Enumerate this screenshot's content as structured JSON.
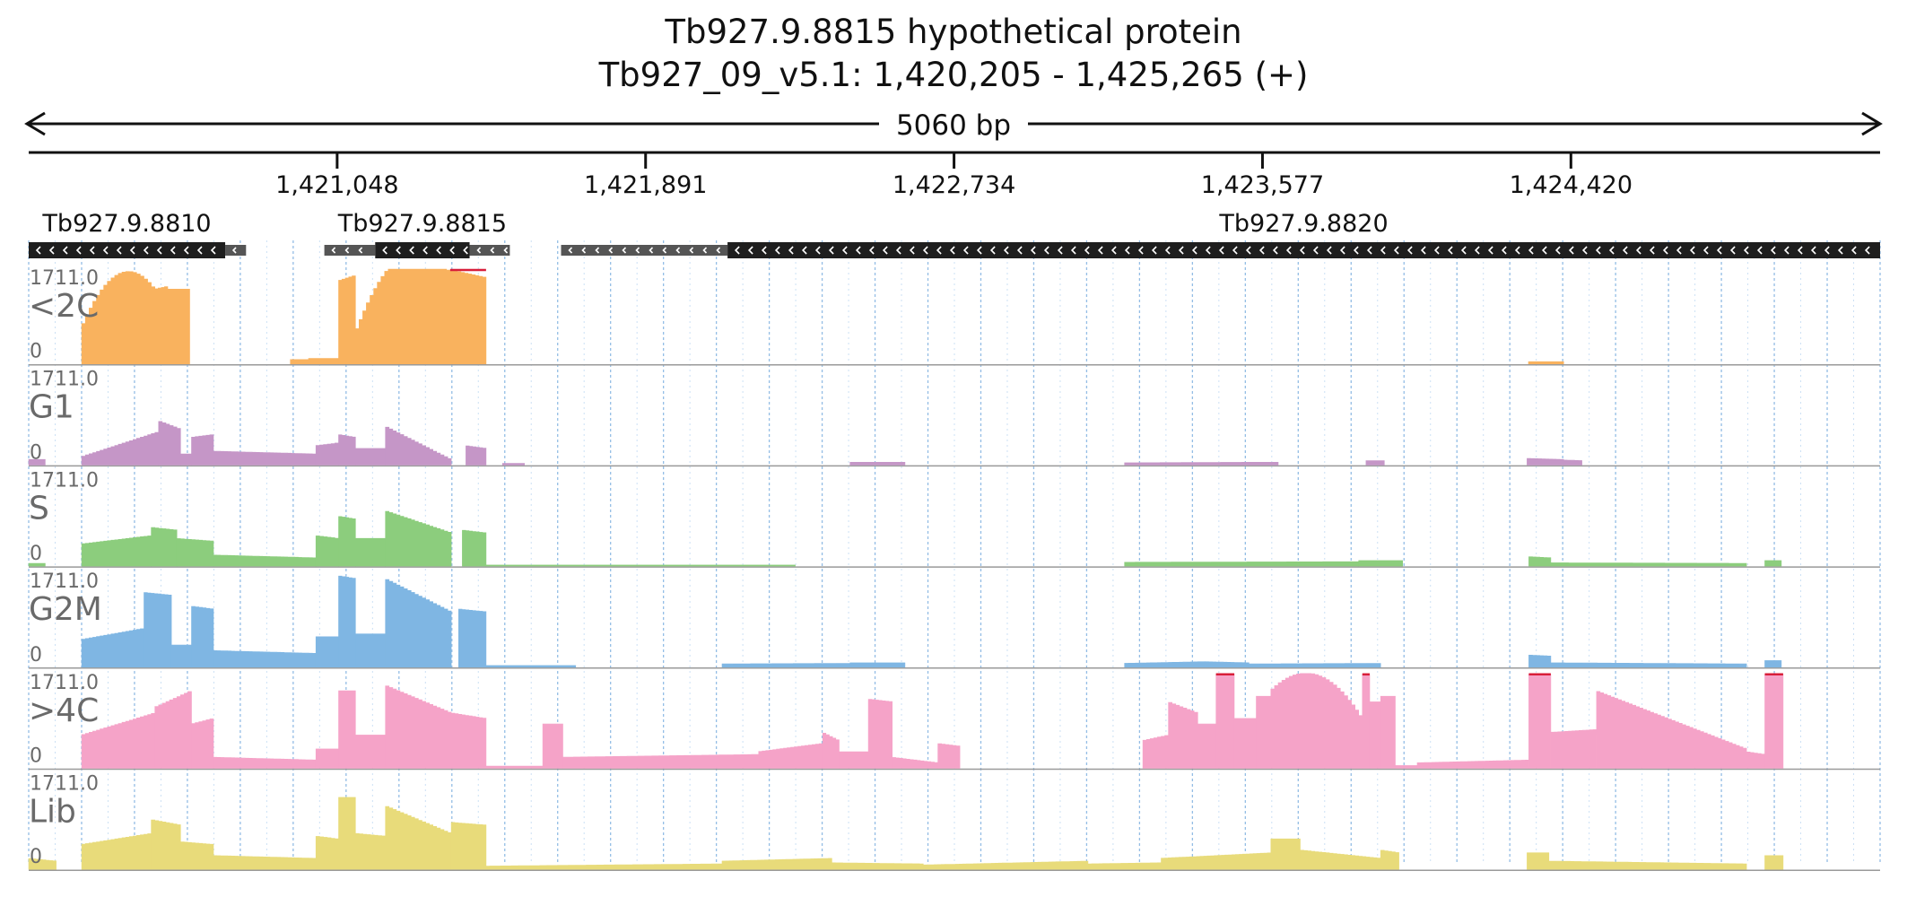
{
  "chart_data": {
    "type": "area",
    "title": "Tb927.9.8815  hypothetical protein",
    "subtitle": "Tb927_09_v5.1: 1,420,205 - 1,425,265 (+)",
    "span_label": "5060 bp",
    "region": {
      "chrom": "Tb927_09_v5.1",
      "start": 1420205,
      "end": 1425265,
      "strand": "+"
    },
    "axis": {
      "ticks": [
        1421048,
        1421891,
        1422734,
        1423577,
        1424420
      ],
      "tick_labels": [
        "1,421,048",
        "1,421,891",
        "1,422,734",
        "1,423,577",
        "1,424,420"
      ]
    },
    "genes": [
      {
        "name": "Tb927.9.8810",
        "strand": "-",
        "segments": [
          {
            "start": 1420205,
            "end": 1420742,
            "kind": "cds"
          },
          {
            "start": 1420742,
            "end": 1420799,
            "kind": "utr"
          }
        ]
      },
      {
        "name": "Tb927.9.8815",
        "strand": "-",
        "segments": [
          {
            "start": 1421013,
            "end": 1421152,
            "kind": "utr"
          },
          {
            "start": 1421152,
            "end": 1421410,
            "kind": "cds"
          },
          {
            "start": 1421410,
            "end": 1421520,
            "kind": "utr"
          }
        ]
      },
      {
        "name": "Tb927.9.8820",
        "strand": "-",
        "segments": [
          {
            "start": 1421660,
            "end": 1422115,
            "kind": "utr"
          },
          {
            "start": 1422115,
            "end": 1425265,
            "kind": "cds"
          }
        ]
      }
    ],
    "y_max_label": "1711.0",
    "y_min_label": "0",
    "ylim": [
      0,
      1711
    ],
    "series": [
      {
        "name": "<2C",
        "color": "#f9b25e",
        "regions": [
          [
            1420350,
            1420550,
            650,
            1350,
            "arch"
          ],
          [
            1420550,
            1420585,
            1350,
            1400,
            "flat"
          ],
          [
            1420585,
            1420645,
            1350,
            1350,
            "flat"
          ],
          [
            1420920,
            1420970,
            80,
            80,
            "flat"
          ],
          [
            1420970,
            1421052,
            100,
            100,
            "flat"
          ],
          [
            1421052,
            1421098,
            1500,
            1600,
            "flat"
          ],
          [
            1421098,
            1421357,
            550,
            1650,
            "arch"
          ],
          [
            1421357,
            1421455,
            1700,
            1560,
            "flat"
          ],
          [
            1424304,
            1424400,
            40,
            40,
            "flat"
          ]
        ]
      },
      {
        "name": "G1",
        "color": "#c596c7",
        "regions": [
          [
            1420205,
            1420250,
            100,
            100,
            "flat"
          ],
          [
            1420350,
            1420560,
            150,
            600,
            "ramp"
          ],
          [
            1420560,
            1420620,
            800,
            650,
            "ramp"
          ],
          [
            1420620,
            1420650,
            200,
            200,
            "flat"
          ],
          [
            1420650,
            1420710,
            500,
            550,
            "flat"
          ],
          [
            1420710,
            1420990,
            250,
            200,
            "flat"
          ],
          [
            1420990,
            1421052,
            350,
            400,
            "flat"
          ],
          [
            1421052,
            1421098,
            550,
            500,
            "flat"
          ],
          [
            1421098,
            1421180,
            300,
            300,
            "flat"
          ],
          [
            1421180,
            1421360,
            700,
            100,
            "ramp"
          ],
          [
            1421400,
            1421455,
            350,
            300,
            "flat"
          ],
          [
            1421500,
            1421560,
            30,
            30,
            "flat"
          ],
          [
            1422450,
            1422600,
            50,
            50,
            "flat"
          ],
          [
            1423200,
            1423540,
            40,
            50,
            "flat"
          ],
          [
            1423540,
            1423620,
            50,
            50,
            "flat"
          ],
          [
            1423860,
            1423910,
            80,
            80,
            "flat"
          ],
          [
            1424300,
            1424400,
            120,
            100,
            "flat"
          ],
          [
            1424400,
            1424450,
            90,
            80,
            "flat"
          ]
        ]
      },
      {
        "name": "S",
        "color": "#8ccd7d",
        "regions": [
          [
            1420205,
            1420250,
            50,
            50,
            "flat"
          ],
          [
            1420350,
            1420540,
            400,
            550,
            "ramp"
          ],
          [
            1420540,
            1420610,
            700,
            650,
            "flat"
          ],
          [
            1420610,
            1420710,
            500,
            450,
            "flat"
          ],
          [
            1420710,
            1420990,
            200,
            150,
            "flat"
          ],
          [
            1420990,
            1421052,
            550,
            500,
            "flat"
          ],
          [
            1421052,
            1421098,
            900,
            850,
            "flat"
          ],
          [
            1421098,
            1421180,
            500,
            500,
            "flat"
          ],
          [
            1421180,
            1421360,
            1000,
            600,
            "ramp"
          ],
          [
            1421390,
            1421455,
            650,
            600,
            "flat"
          ],
          [
            1421455,
            1422300,
            20,
            20,
            "flat"
          ],
          [
            1423200,
            1423840,
            70,
            80,
            "flat"
          ],
          [
            1423840,
            1423960,
            100,
            100,
            "flat"
          ],
          [
            1424305,
            1424365,
            170,
            150,
            "flat"
          ],
          [
            1424365,
            1424900,
            60,
            50,
            "flat"
          ],
          [
            1424950,
            1424995,
            100,
            100,
            "flat"
          ]
        ]
      },
      {
        "name": "G2M",
        "color": "#7fb6e3",
        "regions": [
          [
            1420350,
            1420520,
            500,
            700,
            "ramp"
          ],
          [
            1420520,
            1420595,
            1350,
            1300,
            "flat"
          ],
          [
            1420595,
            1420650,
            400,
            400,
            "flat"
          ],
          [
            1420650,
            1420710,
            1100,
            1050,
            "flat"
          ],
          [
            1420710,
            1420990,
            300,
            250,
            "flat"
          ],
          [
            1420990,
            1421052,
            550,
            550,
            "flat"
          ],
          [
            1421052,
            1421098,
            1650,
            1600,
            "flat"
          ],
          [
            1421098,
            1421180,
            600,
            600,
            "flat"
          ],
          [
            1421180,
            1421360,
            1600,
            1000,
            "ramp"
          ],
          [
            1421380,
            1421455,
            1050,
            1000,
            "flat"
          ],
          [
            1421455,
            1421700,
            30,
            30,
            "flat"
          ],
          [
            1422100,
            1422450,
            60,
            70,
            "flat"
          ],
          [
            1422450,
            1422600,
            80,
            80,
            "flat"
          ],
          [
            1423200,
            1423420,
            70,
            100,
            "flat"
          ],
          [
            1423420,
            1423540,
            100,
            80,
            "flat"
          ],
          [
            1423540,
            1423900,
            60,
            70,
            "flat"
          ],
          [
            1424305,
            1424365,
            220,
            200,
            "flat"
          ],
          [
            1424365,
            1424900,
            80,
            60,
            "flat"
          ],
          [
            1424950,
            1424995,
            120,
            120,
            "flat"
          ]
        ]
      },
      {
        "name": ">4C",
        "color": "#f5a3c8",
        "regions": [
          [
            1420350,
            1420550,
            600,
            1000,
            "ramp"
          ],
          [
            1420550,
            1420650,
            1100,
            1400,
            "flat"
          ],
          [
            1420650,
            1420710,
            800,
            900,
            "flat"
          ],
          [
            1420710,
            1420990,
            200,
            150,
            "flat"
          ],
          [
            1420990,
            1421052,
            350,
            350,
            "flat"
          ],
          [
            1421052,
            1421098,
            1400,
            1400,
            "flat"
          ],
          [
            1421098,
            1421180,
            600,
            600,
            "flat"
          ],
          [
            1421180,
            1421360,
            1500,
            1000,
            "ramp"
          ],
          [
            1421360,
            1421455,
            1000,
            900,
            "flat"
          ],
          [
            1421455,
            1421610,
            40,
            40,
            "flat"
          ],
          [
            1421610,
            1421665,
            800,
            800,
            "flat"
          ],
          [
            1421665,
            1422200,
            200,
            250,
            "flat"
          ],
          [
            1422200,
            1422375,
            300,
            450,
            "ramp"
          ],
          [
            1422375,
            1422420,
            650,
            500,
            "flat"
          ],
          [
            1422420,
            1422500,
            300,
            300,
            "flat"
          ],
          [
            1422500,
            1422565,
            1250,
            1200,
            "flat"
          ],
          [
            1422565,
            1422690,
            200,
            100,
            "ramp"
          ],
          [
            1422690,
            1422750,
            450,
            400,
            "flat"
          ],
          [
            1423250,
            1423320,
            500,
            600,
            "flat"
          ],
          [
            1423320,
            1423400,
            1200,
            1000,
            "flat"
          ],
          [
            1423400,
            1423450,
            800,
            800,
            "flat"
          ],
          [
            1423450,
            1423500,
            1700,
            1700,
            "flat"
          ],
          [
            1423500,
            1423560,
            900,
            900,
            "flat"
          ],
          [
            1423560,
            1423600,
            1300,
            1300,
            "flat"
          ],
          [
            1423600,
            1423850,
            1400,
            900,
            "arch"
          ],
          [
            1423850,
            1423870,
            1700,
            1700,
            "flat"
          ],
          [
            1423870,
            1423900,
            1200,
            1200,
            "flat"
          ],
          [
            1423900,
            1423940,
            1300,
            1300,
            "flat"
          ],
          [
            1423940,
            1424000,
            50,
            50,
            "flat"
          ],
          [
            1424000,
            1424305,
            100,
            150,
            "ramp"
          ],
          [
            1424305,
            1424365,
            1700,
            1700,
            "flat"
          ],
          [
            1424365,
            1424490,
            650,
            700,
            "flat"
          ],
          [
            1424490,
            1424900,
            1400,
            350,
            "ramp"
          ],
          [
            1424900,
            1424950,
            300,
            250,
            "flat"
          ],
          [
            1424950,
            1425000,
            1700,
            1700,
            "flat"
          ]
        ]
      },
      {
        "name": "Lib",
        "color": "#e8db7a",
        "regions": [
          [
            1420205,
            1420280,
            200,
            150,
            "flat"
          ],
          [
            1420350,
            1420540,
            450,
            650,
            "ramp"
          ],
          [
            1420540,
            1420620,
            900,
            800,
            "flat"
          ],
          [
            1420620,
            1420710,
            500,
            450,
            "flat"
          ],
          [
            1420710,
            1420990,
            250,
            200,
            "flat"
          ],
          [
            1420990,
            1421052,
            600,
            550,
            "flat"
          ],
          [
            1421052,
            1421098,
            1300,
            1300,
            "flat"
          ],
          [
            1421098,
            1421180,
            650,
            600,
            "flat"
          ],
          [
            1421180,
            1421360,
            1150,
            650,
            "ramp"
          ],
          [
            1421360,
            1421455,
            850,
            800,
            "flat"
          ],
          [
            1421455,
            1422100,
            60,
            100,
            "flat"
          ],
          [
            1422100,
            1422400,
            150,
            200,
            "flat"
          ],
          [
            1422400,
            1422650,
            120,
            100,
            "flat"
          ],
          [
            1422650,
            1423100,
            80,
            150,
            "ramp"
          ],
          [
            1423100,
            1423300,
            100,
            120,
            "flat"
          ],
          [
            1423300,
            1423600,
            200,
            300,
            "flat"
          ],
          [
            1423600,
            1423680,
            550,
            550,
            "flat"
          ],
          [
            1423680,
            1423900,
            350,
            200,
            "ramp"
          ],
          [
            1423900,
            1423950,
            350,
            300,
            "flat"
          ],
          [
            1424300,
            1424360,
            300,
            300,
            "flat"
          ],
          [
            1424360,
            1424900,
            150,
            100,
            "flat"
          ],
          [
            1424950,
            1425000,
            250,
            250,
            "flat"
          ]
        ]
      }
    ]
  }
}
